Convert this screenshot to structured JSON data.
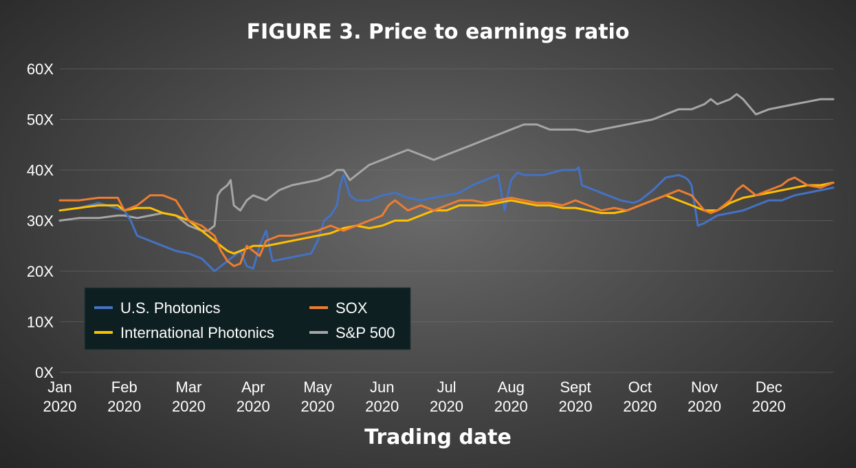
{
  "chart_data": {
    "type": "line",
    "title": "FIGURE 3. Price to earnings ratio",
    "xlabel": "Trading date",
    "ylabel": "",
    "ylim": [
      0,
      60
    ],
    "y_ticks": [
      0,
      10,
      20,
      30,
      40,
      50,
      60
    ],
    "y_tick_labels": [
      "0X",
      "10X",
      "20X",
      "30X",
      "40X",
      "50X",
      "60X"
    ],
    "x_range_months": [
      0,
      12
    ],
    "x_ticks": [
      {
        "line1": "Jan",
        "line2": "2020",
        "month": 0
      },
      {
        "line1": "Feb",
        "line2": "2020",
        "month": 1
      },
      {
        "line1": "Mar",
        "line2": "2020",
        "month": 2
      },
      {
        "line1": "Apr",
        "line2": "2020",
        "month": 3
      },
      {
        "line1": "May",
        "line2": "2020",
        "month": 4
      },
      {
        "line1": "Jun",
        "line2": "2020",
        "month": 5
      },
      {
        "line1": "Jul",
        "line2": "2020",
        "month": 6
      },
      {
        "line1": "Aug",
        "line2": "2020",
        "month": 7
      },
      {
        "line1": "Sept",
        "line2": "2020",
        "month": 8
      },
      {
        "line1": "Oct",
        "line2": "2020",
        "month": 9
      },
      {
        "line1": "Nov",
        "line2": "2020",
        "month": 10
      },
      {
        "line1": "Dec",
        "line2": "2020",
        "month": 11
      }
    ],
    "grid": true,
    "legend_position": "bottom-left",
    "series": [
      {
        "name": "U.S. Photonics",
        "color": "#4472C4",
        "x": [
          0,
          0.3,
          0.6,
          1.0,
          1.1,
          1.2,
          1.4,
          1.6,
          1.8,
          2.0,
          2.2,
          2.4,
          2.6,
          2.8,
          2.9,
          3.0,
          3.1,
          3.2,
          3.3,
          3.5,
          3.7,
          3.9,
          4.0,
          4.1,
          4.2,
          4.3,
          4.35,
          4.4,
          4.5,
          4.6,
          4.8,
          5.0,
          5.2,
          5.4,
          5.6,
          5.8,
          6.0,
          6.2,
          6.4,
          6.6,
          6.8,
          6.9,
          7.0,
          7.1,
          7.2,
          7.5,
          7.8,
          8.0,
          8.05,
          8.1,
          8.3,
          8.5,
          8.7,
          8.9,
          9.0,
          9.2,
          9.4,
          9.6,
          9.7,
          9.75,
          9.8,
          9.9,
          10.0,
          10.2,
          10.4,
          10.6,
          10.8,
          11.0,
          11.2,
          11.4,
          11.6,
          11.8,
          12.0
        ],
        "values": [
          32,
          32.5,
          33.5,
          32,
          30,
          27,
          26,
          25,
          24,
          23.5,
          22.5,
          20,
          22,
          24,
          21,
          20.5,
          25,
          28,
          22,
          22.5,
          23,
          23.5,
          26,
          30,
          31,
          33,
          37,
          39,
          35,
          34,
          34,
          35,
          35.5,
          34.5,
          34,
          34.5,
          35,
          35.5,
          37,
          38,
          39,
          32,
          38,
          39.5,
          39,
          39,
          40,
          40,
          40.5,
          37,
          36,
          35,
          34,
          33.5,
          34,
          36,
          38.5,
          39,
          38.5,
          38,
          37,
          29,
          29.5,
          31,
          31.5,
          32,
          33,
          34,
          34,
          35,
          35.5,
          36,
          36.5
        ]
      },
      {
        "name": "SOX",
        "color": "#ED7D31",
        "x": [
          0,
          0.3,
          0.6,
          0.9,
          1.0,
          1.2,
          1.4,
          1.6,
          1.8,
          2.0,
          2.2,
          2.4,
          2.5,
          2.6,
          2.7,
          2.8,
          2.9,
          3.0,
          3.1,
          3.2,
          3.4,
          3.6,
          3.8,
          4.0,
          4.2,
          4.4,
          4.6,
          4.8,
          5.0,
          5.1,
          5.2,
          5.4,
          5.6,
          5.8,
          6.0,
          6.2,
          6.4,
          6.6,
          6.8,
          7.0,
          7.2,
          7.4,
          7.6,
          7.8,
          8.0,
          8.2,
          8.4,
          8.6,
          8.8,
          9.0,
          9.2,
          9.4,
          9.6,
          9.8,
          10.0,
          10.1,
          10.2,
          10.4,
          10.5,
          10.6,
          10.8,
          11.0,
          11.2,
          11.3,
          11.4,
          11.6,
          11.8,
          12.0
        ],
        "values": [
          34,
          34,
          34.5,
          34.5,
          32,
          33,
          35,
          35,
          34,
          30,
          29,
          27,
          24,
          22,
          21,
          21.5,
          25,
          24,
          23,
          26,
          27,
          27,
          27.5,
          28,
          29,
          28,
          29,
          30,
          31,
          33,
          34,
          32,
          33,
          32,
          33,
          34,
          34,
          33.5,
          34,
          34.5,
          34,
          33.5,
          33.5,
          33,
          34,
          33,
          32,
          32.5,
          32,
          33,
          34,
          35,
          36,
          35,
          32,
          31.5,
          32,
          34,
          36,
          37,
          35,
          36,
          37,
          38,
          38.5,
          37,
          36.5,
          37.5
        ]
      },
      {
        "name": "International Photonics",
        "color": "#FFC000",
        "x": [
          0,
          0.3,
          0.6,
          0.9,
          1.0,
          1.2,
          1.4,
          1.6,
          1.8,
          2.0,
          2.2,
          2.4,
          2.5,
          2.6,
          2.7,
          2.8,
          3.0,
          3.2,
          3.4,
          3.6,
          3.8,
          4.0,
          4.2,
          4.4,
          4.6,
          4.8,
          5.0,
          5.2,
          5.4,
          5.6,
          5.8,
          6.0,
          6.2,
          6.4,
          6.6,
          6.8,
          7.0,
          7.2,
          7.4,
          7.6,
          7.8,
          8.0,
          8.2,
          8.4,
          8.6,
          8.8,
          9.0,
          9.2,
          9.4,
          9.6,
          9.8,
          10.0,
          10.2,
          10.4,
          10.6,
          10.8,
          11.0,
          11.2,
          11.4,
          11.6,
          11.8,
          12.0
        ],
        "values": [
          32,
          32.5,
          33,
          33,
          32,
          32.5,
          32.5,
          31.5,
          31,
          30,
          28,
          26,
          25,
          24,
          23.5,
          24,
          25,
          25,
          25.5,
          26,
          26.5,
          27,
          27.5,
          28.5,
          29,
          28.5,
          29,
          30,
          30,
          31,
          32,
          32,
          33,
          33,
          33,
          33.5,
          34,
          33.5,
          33,
          33,
          32.5,
          32.5,
          32,
          31.5,
          31.5,
          32,
          33,
          34,
          35,
          34,
          33,
          32,
          32,
          33.5,
          34.5,
          35,
          35.5,
          36,
          36.5,
          37,
          37,
          37.5
        ]
      },
      {
        "name": "S&P 500",
        "color": "#A6A6A6",
        "x": [
          0,
          0.3,
          0.6,
          0.9,
          1.0,
          1.2,
          1.4,
          1.6,
          1.8,
          2.0,
          2.1,
          2.2,
          2.3,
          2.4,
          2.45,
          2.5,
          2.6,
          2.65,
          2.7,
          2.8,
          2.9,
          3.0,
          3.2,
          3.4,
          3.6,
          3.8,
          4.0,
          4.2,
          4.3,
          4.4,
          4.5,
          4.6,
          4.8,
          5.0,
          5.2,
          5.4,
          5.6,
          5.8,
          6.0,
          6.2,
          6.4,
          6.6,
          6.8,
          7.0,
          7.2,
          7.4,
          7.6,
          7.8,
          8.0,
          8.2,
          8.4,
          8.6,
          8.8,
          9.0,
          9.2,
          9.4,
          9.6,
          9.8,
          10.0,
          10.1,
          10.2,
          10.4,
          10.5,
          10.6,
          10.8,
          11.0,
          11.2,
          11.4,
          11.6,
          11.8,
          12.0
        ],
        "values": [
          30,
          30.5,
          30.5,
          31,
          31,
          30.5,
          31,
          31.5,
          31,
          29,
          28.5,
          28,
          28,
          29,
          35,
          36,
          37,
          38,
          33,
          32,
          34,
          35,
          34,
          36,
          37,
          37.5,
          38,
          39,
          40,
          40,
          38,
          39,
          41,
          42,
          43,
          44,
          43,
          42,
          43,
          44,
          45,
          46,
          47,
          48,
          49,
          49,
          48,
          48,
          48,
          47.5,
          48,
          48.5,
          49,
          49.5,
          50,
          51,
          52,
          52,
          53,
          54,
          53,
          54,
          55,
          54,
          51,
          52,
          52.5,
          53,
          53.5,
          54,
          54
        ]
      }
    ]
  }
}
